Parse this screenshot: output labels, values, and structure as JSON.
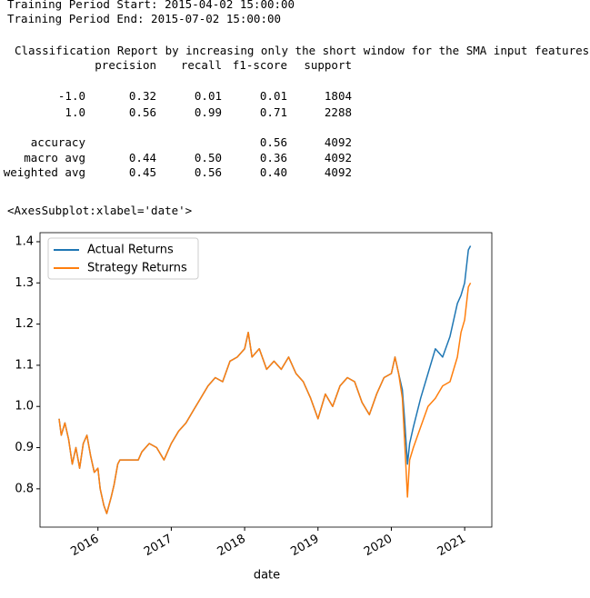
{
  "output": {
    "lines": [
      "Training Period Start: 2015-04-02 15:00:00",
      "Training Period End: 2015-07-02 15:00:00"
    ]
  },
  "report": {
    "title": "Classification Report by increasing only the short window for the SMA input features",
    "columns": [
      "precision",
      "recall",
      "f1-score",
      "support"
    ],
    "rows": [
      [
        "-1.0",
        "0.32",
        "0.01",
        "0.01",
        "1804"
      ],
      [
        "1.0",
        "0.56",
        "0.99",
        "0.71",
        "2288"
      ],
      [
        "accuracy",
        null,
        null,
        "0.56",
        "4092"
      ],
      [
        "macro avg",
        "0.44",
        "0.50",
        "0.36",
        "4092"
      ],
      [
        "weighted avg",
        "0.45",
        "0.56",
        "0.40",
        "4092"
      ]
    ]
  },
  "axes_repr": "<AxesSubplot:xlabel='date'>",
  "chart_data": {
    "type": "line",
    "x_label": "date",
    "x": [
      2015.47,
      2015.5,
      2015.55,
      2015.6,
      2015.65,
      2015.7,
      2015.75,
      2015.8,
      2015.85,
      2015.9,
      2015.95,
      2016.0,
      2016.03,
      2016.08,
      2016.12,
      2016.18,
      2016.22,
      2016.27,
      2016.3,
      2016.55,
      2016.6,
      2016.7,
      2016.8,
      2016.9,
      2017.0,
      2017.1,
      2017.2,
      2017.3,
      2017.4,
      2017.5,
      2017.6,
      2017.7,
      2017.8,
      2017.9,
      2018.0,
      2018.05,
      2018.1,
      2018.2,
      2018.3,
      2018.4,
      2018.5,
      2018.6,
      2018.7,
      2018.8,
      2018.9,
      2019.0,
      2019.1,
      2019.2,
      2019.3,
      2019.4,
      2019.5,
      2019.6,
      2019.7,
      2019.8,
      2019.9,
      2020.0,
      2020.05,
      2020.1,
      2020.15,
      2020.18,
      2020.22,
      2020.25,
      2020.3,
      2020.4,
      2020.5,
      2020.6,
      2020.7,
      2020.8,
      2020.9,
      2020.95,
      2021.0,
      2021.05,
      2021.08
    ],
    "series": [
      {
        "name": "Actual Returns",
        "color": "#1f77b4",
        "values": [
          0.97,
          0.93,
          0.96,
          0.92,
          0.86,
          0.9,
          0.85,
          0.91,
          0.93,
          0.88,
          0.84,
          0.85,
          0.8,
          0.76,
          0.74,
          0.78,
          0.81,
          0.86,
          0.87,
          0.87,
          0.89,
          0.91,
          0.9,
          0.87,
          0.91,
          0.94,
          0.96,
          0.99,
          1.02,
          1.05,
          1.07,
          1.06,
          1.11,
          1.12,
          1.14,
          1.18,
          1.12,
          1.14,
          1.09,
          1.11,
          1.09,
          1.12,
          1.08,
          1.06,
          1.02,
          0.97,
          1.03,
          1.0,
          1.05,
          1.07,
          1.06,
          1.01,
          0.98,
          1.03,
          1.07,
          1.08,
          1.12,
          1.08,
          1.04,
          0.97,
          0.86,
          0.91,
          0.95,
          1.02,
          1.08,
          1.14,
          1.12,
          1.17,
          1.25,
          1.27,
          1.3,
          1.38,
          1.39
        ]
      },
      {
        "name": "Strategy Returns",
        "color": "#ff7f0e",
        "values": [
          0.97,
          0.93,
          0.96,
          0.92,
          0.86,
          0.9,
          0.85,
          0.91,
          0.93,
          0.88,
          0.84,
          0.85,
          0.8,
          0.76,
          0.74,
          0.78,
          0.81,
          0.86,
          0.87,
          0.87,
          0.89,
          0.91,
          0.9,
          0.87,
          0.91,
          0.94,
          0.96,
          0.99,
          1.02,
          1.05,
          1.07,
          1.06,
          1.11,
          1.12,
          1.14,
          1.18,
          1.12,
          1.14,
          1.09,
          1.11,
          1.09,
          1.12,
          1.08,
          1.06,
          1.02,
          0.97,
          1.03,
          1.0,
          1.05,
          1.07,
          1.06,
          1.01,
          0.98,
          1.03,
          1.07,
          1.08,
          1.12,
          1.08,
          1.02,
          0.92,
          0.78,
          0.87,
          0.9,
          0.95,
          1.0,
          1.02,
          1.05,
          1.06,
          1.12,
          1.18,
          1.21,
          1.29,
          1.3
        ]
      }
    ],
    "xlim": [
      2015.21,
      2021.37
    ],
    "ylim": [
      0.707,
      1.422
    ],
    "xticks": [
      2016,
      2017,
      2018,
      2019,
      2020,
      2021
    ],
    "yticks": [
      0.8,
      0.9,
      {
        "value": 1,
        "label": "1.0"
      },
      1.1,
      1.2,
      1.3,
      1.4
    ],
    "legend": "upper left",
    "grid": false
  }
}
